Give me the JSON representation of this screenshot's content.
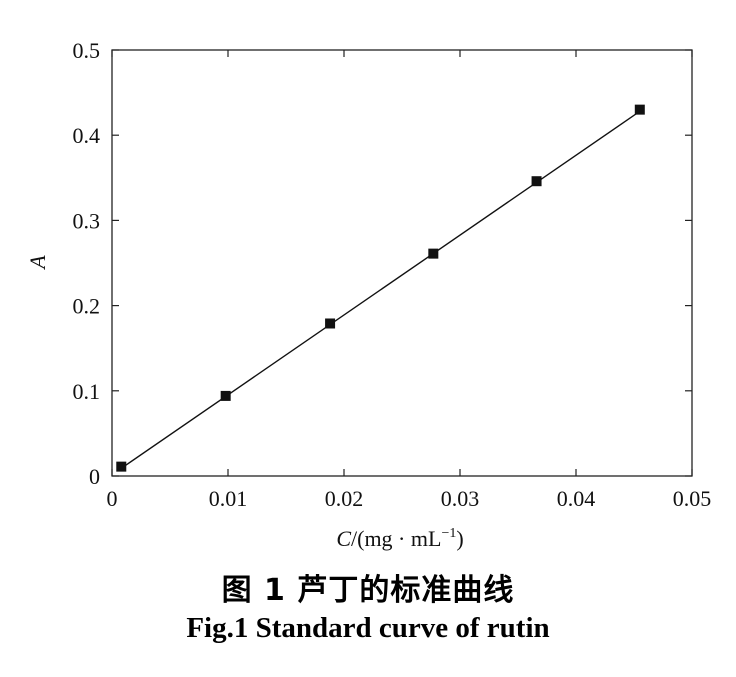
{
  "chart_data": {
    "type": "scatter",
    "x": [
      0.0008,
      0.0098,
      0.0188,
      0.0277,
      0.0366,
      0.0455
    ],
    "y": [
      0.011,
      0.094,
      0.179,
      0.261,
      0.346,
      0.43
    ],
    "fit_line": {
      "x": [
        0.0008,
        0.0455
      ],
      "y": [
        0.009,
        0.428
      ]
    },
    "xlim": [
      0,
      0.05
    ],
    "ylim": [
      0,
      0.5
    ],
    "xticks": [
      "0",
      "0.01",
      "0.02",
      "0.03",
      "0.04",
      "0.05"
    ],
    "yticks": [
      "0",
      "0.1",
      "0.2",
      "0.3",
      "0.4",
      "0.5"
    ],
    "xtick_values": [
      0,
      0.01,
      0.02,
      0.03,
      0.04,
      0.05
    ],
    "ytick_values": [
      0,
      0.1,
      0.2,
      0.3,
      0.4,
      0.5
    ],
    "xlabel": {
      "var": "C",
      "unit": "/(mg · mL",
      "sup": "−1",
      "close": ")"
    },
    "ylabel": "A",
    "grid": false,
    "marker": "square",
    "marker_color": "#111111",
    "line_color": "#111111"
  },
  "caption": {
    "cn": "图 1   芦丁的标准曲线",
    "en": "Fig.1 Standard curve of rutin"
  }
}
